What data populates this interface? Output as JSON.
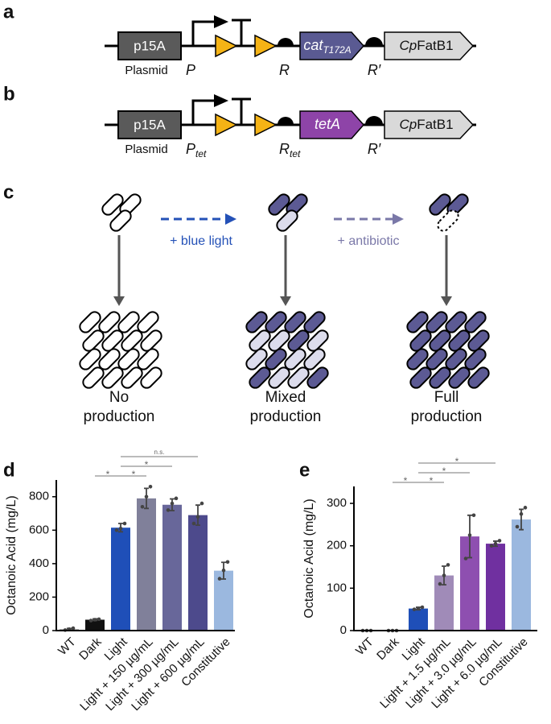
{
  "panel_labels": [
    "a",
    "b",
    "c",
    "d",
    "e"
  ],
  "construct_a": {
    "origin": "p15A",
    "plasmid": "Plasmid",
    "promoter": {
      "main": "P"
    },
    "rbs1": {
      "main": "R"
    },
    "gene": {
      "main": "cat",
      "sub": "T172A"
    },
    "rbs2": "R′",
    "cds": {
      "italic": "Cp",
      "rest": "FatB1"
    }
  },
  "construct_b": {
    "origin": "p15A",
    "plasmid": "Plasmid",
    "promoter": {
      "main": "P",
      "sub": "tet"
    },
    "rbs1": {
      "main": "R",
      "sub": "tet"
    },
    "gene": {
      "main": "tetA"
    },
    "rbs2": "R′",
    "cds": {
      "italic": "Cp",
      "rest": "FatB1"
    }
  },
  "panel_c": {
    "step1": "+ blue light",
    "step2": "+ antibiotic",
    "outcomes": [
      [
        "No",
        "production"
      ],
      [
        "Mixed",
        "production"
      ],
      [
        "Full",
        "production"
      ]
    ]
  },
  "chart_data": [
    {
      "type": "bar",
      "ylabel": "Octanoic Acid (mg/L)",
      "categories": [
        "WT",
        "Dark",
        "Light",
        "Light + 150 µg/mL",
        "Light + 300 µg/mL",
        "Light + 600 µg/mL",
        "Constitutive"
      ],
      "values": [
        8,
        65,
        615,
        790,
        752,
        690,
        358
      ],
      "errors": [
        5,
        5,
        25,
        60,
        35,
        60,
        50
      ],
      "points": [
        [
          3,
          8,
          14
        ],
        [
          60,
          65,
          68
        ],
        [
          600,
          610,
          640
        ],
        [
          740,
          800,
          860
        ],
        [
          720,
          760,
          790
        ],
        [
          640,
          680,
          760
        ],
        [
          310,
          360,
          410
        ]
      ],
      "colors": [
        "#8c8c8c",
        "#111111",
        "#1f4fb8",
        "#80809a",
        "#68679a",
        "#4d4a8c",
        "#9bb8df"
      ],
      "ylim": [
        0,
        900
      ],
      "yticks": [
        0,
        200,
        400,
        600,
        800
      ],
      "comparisons": [
        {
          "from": "Dark",
          "to": "Light",
          "label": "*"
        },
        {
          "from": "Light",
          "to": "Light + 150 µg/mL",
          "label": "*"
        },
        {
          "from": "Light",
          "to": "Light + 300 µg/mL",
          "label": "*"
        },
        {
          "from": "Light",
          "to": "Light + 600 µg/mL",
          "label": "n.s."
        }
      ]
    },
    {
      "type": "bar",
      "ylabel": "Octanoic Acid (mg/L)",
      "categories": [
        "WT",
        "Dark",
        "Light",
        "Light + 1.5 µg/mL",
        "Light + 3.0 µg/mL",
        "Light + 6.0 µg/mL",
        "Constitutive"
      ],
      "values": [
        0,
        0,
        52,
        130,
        222,
        205,
        262
      ],
      "errors": [
        0,
        0,
        3,
        22,
        50,
        6,
        24
      ],
      "points": [
        [
          0,
          0,
          0
        ],
        [
          0,
          0,
          0
        ],
        [
          50,
          52,
          55
        ],
        [
          110,
          130,
          155
        ],
        [
          170,
          225,
          272
        ],
        [
          200,
          205,
          212
        ],
        [
          245,
          275,
          290
        ]
      ],
      "colors": [
        "#8c8c8c",
        "#8c8c8c",
        "#1f4fb8",
        "#a08bb8",
        "#8e4fb0",
        "#7030a0",
        "#9bb8df"
      ],
      "ylim": [
        0,
        340
      ],
      "yticks": [
        0,
        100,
        200,
        300
      ],
      "comparisons": [
        {
          "from": "Dark",
          "to": "Light",
          "label": "*"
        },
        {
          "from": "Light",
          "to": "Light + 1.5 µg/mL",
          "label": "*"
        },
        {
          "from": "Light",
          "to": "Light + 3.0 µg/mL",
          "label": "*"
        },
        {
          "from": "Light",
          "to": "Light + 6.0 µg/mL",
          "label": "*"
        }
      ]
    }
  ]
}
